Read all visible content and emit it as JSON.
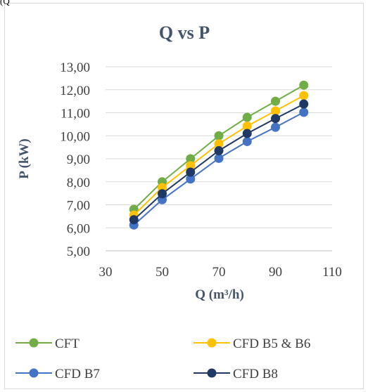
{
  "corner_label": "(Q",
  "chart_data": {
    "type": "line",
    "title": "Q vs P",
    "xlabel": "Q (m³/h)",
    "ylabel": "P (kW)",
    "xlim": [
      30,
      110
    ],
    "ylim": [
      5,
      13
    ],
    "x_ticks": [
      "30",
      "50",
      "70",
      "90",
      "110"
    ],
    "y_ticks": [
      "13,00",
      "12,00",
      "11,00",
      "10,00",
      "9,00",
      "8,00",
      "7,00",
      "6,00",
      "5,00"
    ],
    "grid": "horizontal",
    "legend_position": "bottom",
    "x": [
      40,
      50,
      60,
      70,
      80,
      90,
      100
    ],
    "series": [
      {
        "name": "CFT",
        "color": "#70ad47",
        "values": [
          6.8,
          8.0,
          9.0,
          10.0,
          10.8,
          11.5,
          12.2
        ]
      },
      {
        "name": "CFD B5 & B6",
        "color": "#ffc000",
        "values": [
          6.55,
          7.75,
          8.7,
          9.65,
          10.42,
          11.08,
          11.75
        ]
      },
      {
        "name": "CFD B7",
        "color": "#4472c4",
        "values": [
          6.12,
          7.22,
          8.12,
          9.02,
          9.75,
          10.37,
          11.02
        ]
      },
      {
        "name": "CFD B8",
        "color": "#203864",
        "values": [
          6.35,
          7.48,
          8.42,
          9.35,
          10.1,
          10.75,
          11.38
        ]
      }
    ]
  }
}
